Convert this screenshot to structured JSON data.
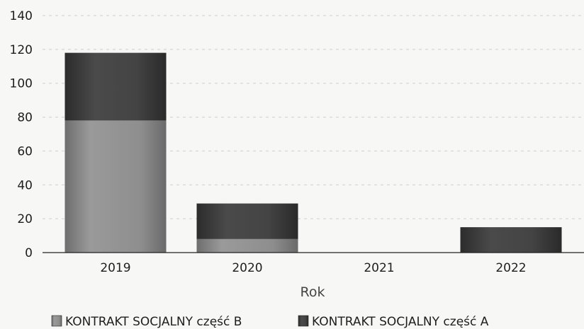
{
  "chart_data": {
    "type": "bar",
    "stacked": true,
    "categories": [
      "2019",
      "2020",
      "2021",
      "2022"
    ],
    "series": [
      {
        "name": "KONTRAKT SOCJALNY część B",
        "values": [
          78,
          8,
          0,
          0
        ],
        "color": "#8c8c8c"
      },
      {
        "name": "KONTRAKT SOCJALNY część A",
        "values": [
          40,
          21,
          0,
          15
        ],
        "color": "#3f3f3f"
      }
    ],
    "ylim": [
      0,
      140
    ],
    "yticks": [
      0,
      20,
      40,
      60,
      80,
      100,
      120,
      140
    ],
    "xlabel": "Rok",
    "ylabel": "",
    "grid": true,
    "legend_position": "bottom"
  }
}
